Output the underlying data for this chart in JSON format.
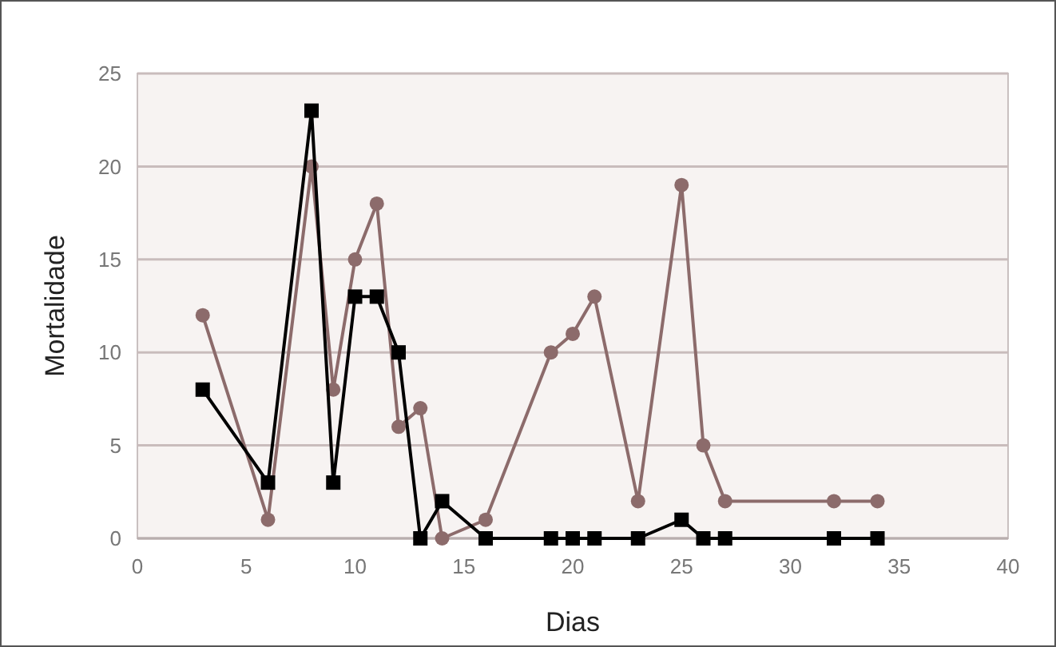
{
  "chart_data": {
    "type": "line",
    "xlabel": "Dias",
    "ylabel": "Mortalidade",
    "xlim": [
      0,
      40
    ],
    "xticks": [
      0,
      5,
      10,
      15,
      20,
      25,
      30,
      35,
      40
    ],
    "ylim": [
      0,
      25
    ],
    "yticks": [
      0,
      5,
      10,
      15,
      20,
      25
    ],
    "grid": "y",
    "series": [
      {
        "color": "#8c6b6b",
        "marker": "circle",
        "x": [
          3,
          6,
          8,
          9,
          10,
          11,
          12,
          13,
          14,
          16,
          19,
          20,
          21,
          23,
          25,
          26,
          27,
          32,
          34
        ],
        "values": [
          12,
          1,
          20,
          8,
          15,
          18,
          6,
          7,
          0,
          1,
          10,
          11,
          13,
          2,
          19,
          5,
          2,
          2,
          2
        ]
      },
      {
        "color": "#000000",
        "marker": "square",
        "x": [
          3,
          6,
          8,
          9,
          10,
          11,
          12,
          13,
          14,
          16,
          19,
          20,
          21,
          23,
          25,
          26,
          27,
          32,
          34
        ],
        "values": [
          8,
          3,
          23,
          3,
          13,
          13,
          10,
          0,
          2,
          0,
          0,
          0,
          0,
          0,
          1,
          0,
          0,
          0,
          0
        ]
      }
    ]
  }
}
